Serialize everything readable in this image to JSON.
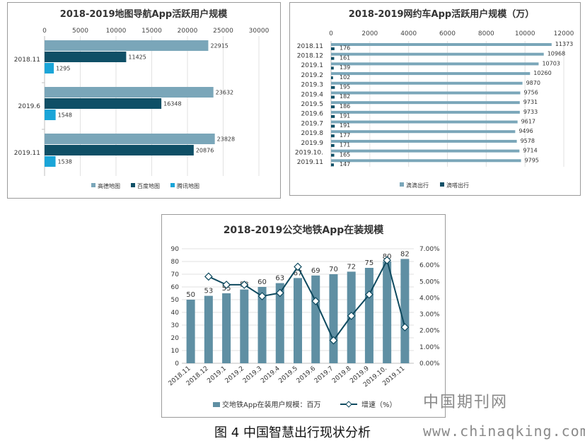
{
  "colors": {
    "gaode": "#7aa6b9",
    "baidu": "#0f4f66",
    "tencent": "#1aa5d8",
    "didi": "#7aa6b9",
    "dida": "#0f4f66",
    "bus_bar": "#5f8fa3",
    "bus_line": "#0f4a5f"
  },
  "figure": {
    "caption": "图 4 中国智慧出行现状分析",
    "watermark_cn": "中国期刊网",
    "watermark_url": "www.chinaqking.com"
  },
  "chart_data": [
    {
      "type": "bar",
      "orientation": "horizontal",
      "title": "2018-2019地图导航App活跃用户规模",
      "categories": [
        "2018.11",
        "2019.6",
        "2019.11"
      ],
      "series": [
        {
          "name": "高德地图",
          "values": [
            22915,
            23632,
            23828
          ]
        },
        {
          "name": "百度地图",
          "values": [
            11425,
            16348,
            20876
          ]
        },
        {
          "name": "腾讯地图",
          "values": [
            1295,
            1548,
            1538
          ]
        }
      ],
      "xlim": [
        0,
        30000
      ],
      "xticks": [
        "0",
        "5000",
        "10000",
        "15000",
        "20000",
        "25000",
        "30000"
      ],
      "legend": "bottom"
    },
    {
      "type": "bar",
      "orientation": "horizontal",
      "title": "2018-2019网约车App活跃用户规模（万）",
      "categories": [
        "2018.11",
        "2018.12",
        "2019.1",
        "2019.2",
        "2019.3",
        "2019.4",
        "2019.5",
        "2019.6",
        "2019.7",
        "2019.8",
        "2019.9",
        "2019.10.",
        "2019.11"
      ],
      "series": [
        {
          "name": "滴滴出行",
          "values": [
            11373,
            10968,
            10703,
            10260,
            9870,
            9756,
            9731,
            9733,
            9617,
            9496,
            9578,
            9714,
            9795
          ]
        },
        {
          "name": "滴嗒出行",
          "values": [
            176,
            161,
            139,
            102,
            195,
            182,
            186,
            191,
            191,
            177,
            171,
            165,
            147
          ]
        }
      ],
      "xlim": [
        0,
        12000
      ],
      "xticks": [
        "0",
        "2000",
        "4000",
        "6000",
        "8000",
        "10000",
        "12000"
      ],
      "legend": "bottom"
    },
    {
      "type": "bar+line",
      "title": "2018-2019公交地铁App在装规模",
      "categories": [
        "2018.11",
        "2018.12",
        "2019.1",
        "2019.2",
        "2019.3",
        "2019.4",
        "2019.5",
        "2019.6",
        "2019.7",
        "2019.8",
        "2019.9",
        "2019.10.",
        "2019.11"
      ],
      "series": [
        {
          "name": "交地铁App在装用户规模：百万",
          "kind": "bar",
          "axis": "left",
          "values": [
            50,
            53,
            55,
            58,
            60,
            63,
            67,
            69,
            70,
            72,
            75,
            80,
            82
          ],
          "labels": [
            "50",
            "53",
            "55",
            "58",
            "60",
            "63",
            "67",
            "69",
            "70",
            "72",
            "75",
            "80",
            "82"
          ]
        },
        {
          "name": "增速（%）",
          "kind": "line",
          "axis": "right",
          "values": [
            null,
            5.3,
            4.8,
            4.8,
            4.1,
            4.3,
            5.9,
            3.8,
            1.4,
            2.9,
            4.2,
            6.3,
            2.2
          ]
        }
      ],
      "ylim_left": [
        0,
        90
      ],
      "yticks_left": [
        "0",
        "10",
        "20",
        "30",
        "40",
        "50",
        "60",
        "70",
        "80",
        "90"
      ],
      "ylim_right": [
        0,
        7
      ],
      "yticks_right": [
        "0.00%",
        "1.00%",
        "2.00%",
        "3.00%",
        "4.00%",
        "5.00%",
        "6.00%",
        "7.00%"
      ],
      "legend": "bottom"
    }
  ]
}
